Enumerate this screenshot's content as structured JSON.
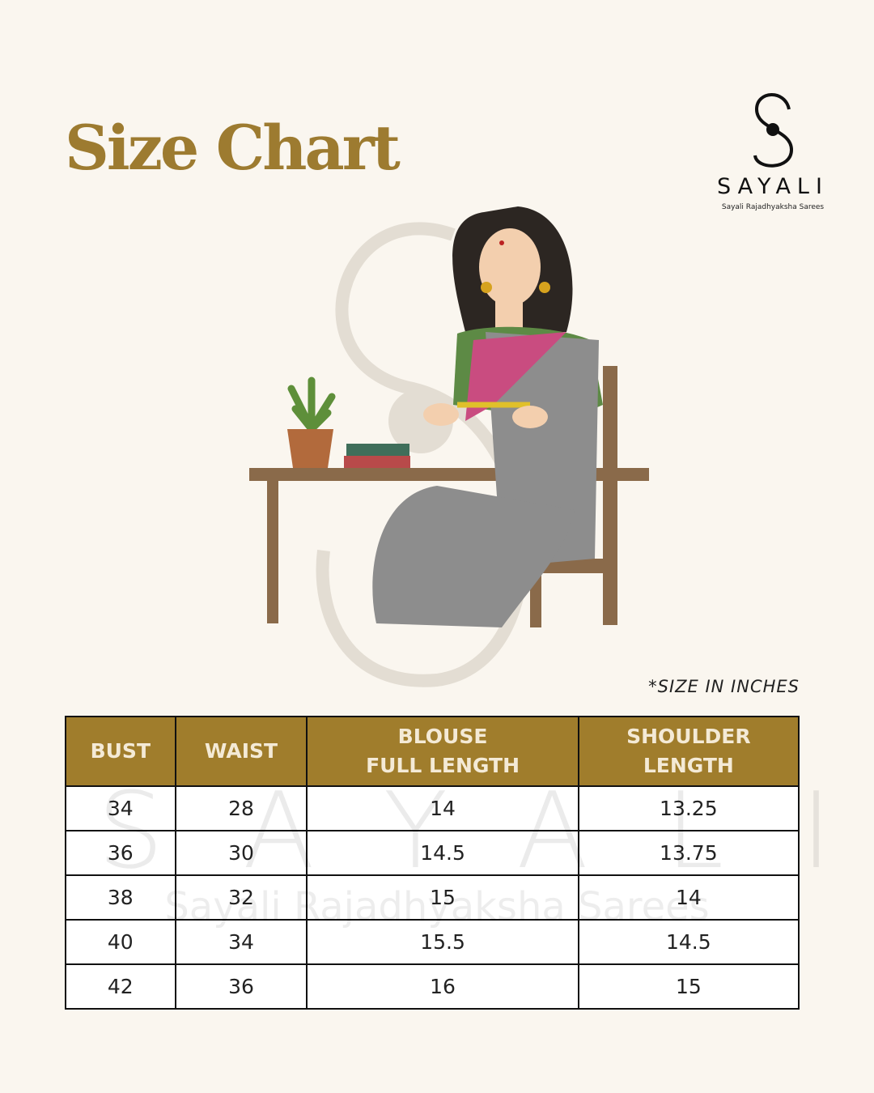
{
  "header": {
    "title": "Size Chart",
    "brand": "SAYALI",
    "brand_tagline": "Sayali Rajadhyaksha Sarees"
  },
  "note": "*SIZE IN INCHES",
  "watermark": {
    "brand": "SAYALI",
    "tagline": "Sayali Rajadhyaksha Sarees"
  },
  "table": {
    "columns": [
      "BUST",
      "WAIST",
      "BLOUSE\nFULL LENGTH",
      "SHOULDER\nLENGTH"
    ],
    "rows": [
      [
        34,
        28,
        14,
        13.25
      ],
      [
        36,
        30,
        14.5,
        13.75
      ],
      [
        38,
        32,
        15,
        14
      ],
      [
        40,
        34,
        15.5,
        14.5
      ],
      [
        42,
        36,
        16,
        15
      ]
    ]
  }
}
